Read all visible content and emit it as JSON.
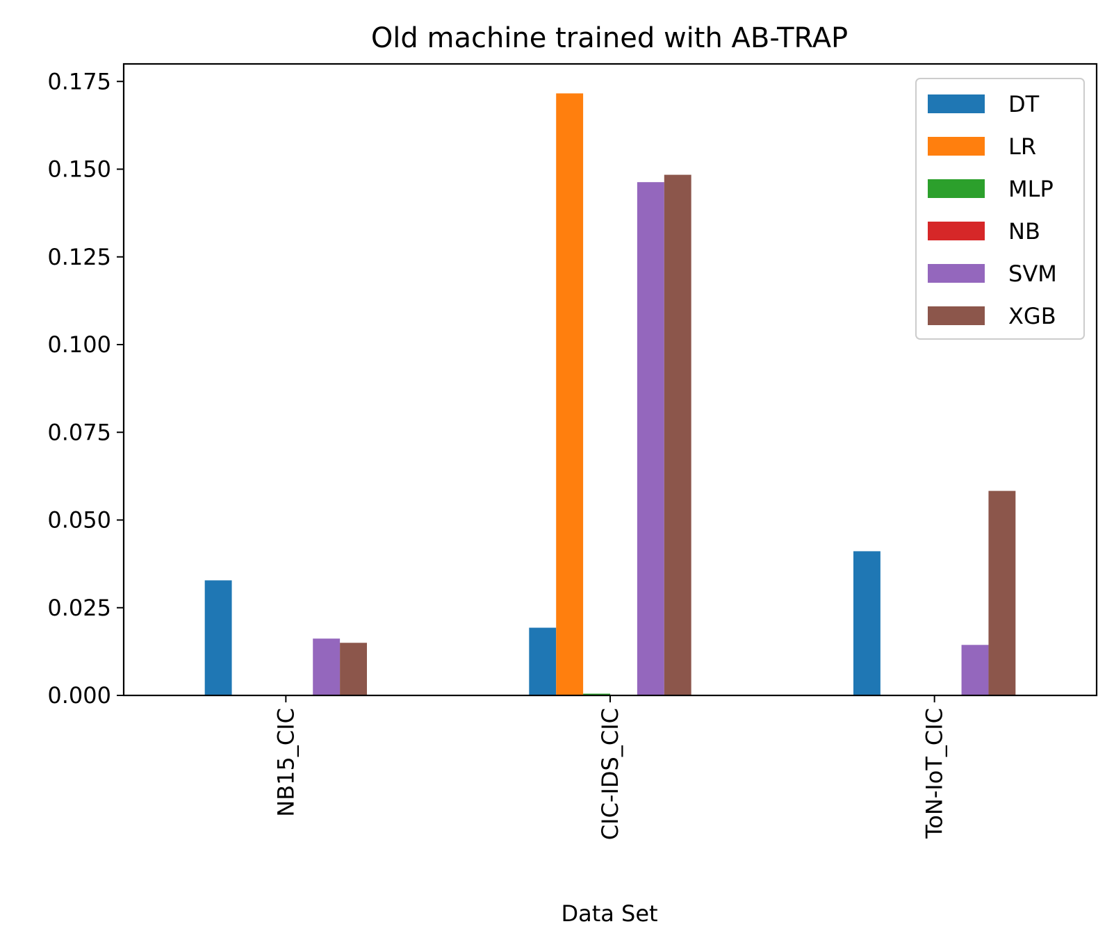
{
  "chart_data": {
    "type": "bar",
    "title": "Old machine trained with AB-TRAP",
    "xlabel": "Data Set",
    "ylabel": "",
    "categories": [
      "NB15_CIC",
      "CIC-IDS_CIC",
      "ToN-IoT_CIC"
    ],
    "series": [
      {
        "name": "DT",
        "color": "#1f77b4",
        "values": [
          0.0328,
          0.0193,
          0.0411
        ]
      },
      {
        "name": "LR",
        "color": "#ff7f0e",
        "values": [
          0.0,
          0.1716,
          0.0
        ]
      },
      {
        "name": "MLP",
        "color": "#2ca02c",
        "values": [
          0.0,
          0.0005,
          0.0
        ]
      },
      {
        "name": "NB",
        "color": "#d62728",
        "values": [
          0.0,
          0.0,
          0.0
        ]
      },
      {
        "name": "SVM",
        "color": "#9467bd",
        "values": [
          0.0162,
          0.1463,
          0.0144
        ]
      },
      {
        "name": "XGB",
        "color": "#8c564b",
        "values": [
          0.015,
          0.1484,
          0.0583
        ]
      }
    ],
    "ylim": [
      0,
      0.18
    ],
    "yticks": [
      "0.000",
      "0.025",
      "0.050",
      "0.075",
      "0.100",
      "0.125",
      "0.150",
      "0.175"
    ],
    "ytick_values": [
      0,
      0.025,
      0.05,
      0.075,
      0.1,
      0.125,
      0.15,
      0.175
    ],
    "legend_position": "top-right",
    "grid": false,
    "x_tick_rotation": "vertical"
  }
}
